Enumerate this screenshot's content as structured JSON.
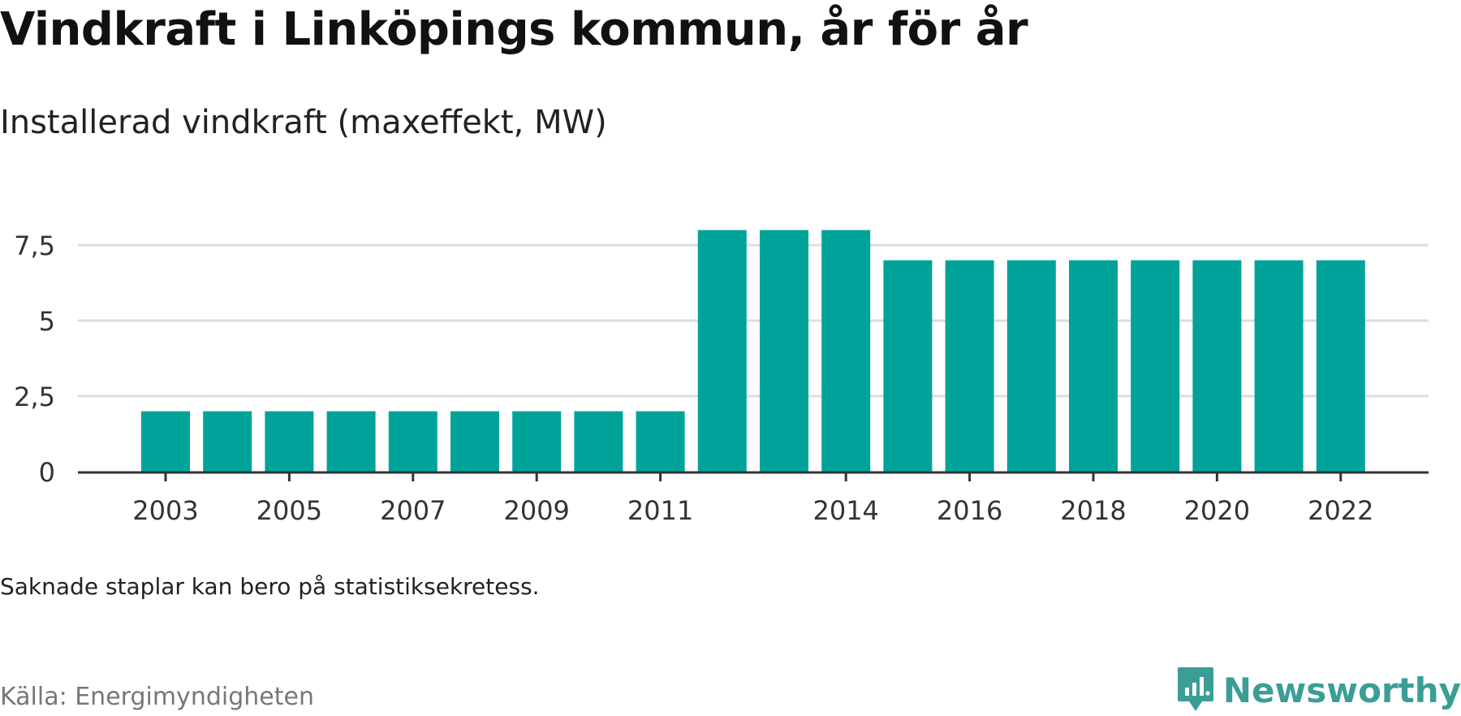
{
  "title": "Vindkraft i Linköpings kommun, år för år",
  "subtitle": "Installerad vindkraft (maxeffekt, MW)",
  "note": "Saknade staplar kan bero på statistiksekretess.",
  "source": "Källa: Energimyndigheten",
  "logo": {
    "text": "Newsworthy",
    "icon": "newsworthy-logo-icon",
    "color": "#3a9e96"
  },
  "colors": {
    "bar": "#00a39a",
    "grid": "#dddddd",
    "axis": "#333333"
  },
  "chart_data": {
    "type": "bar",
    "categories": [
      "2003",
      "2004",
      "2005",
      "2006",
      "2007",
      "2008",
      "2009",
      "2010",
      "2011",
      "2012",
      "2013",
      "2014",
      "2015",
      "2016",
      "2017",
      "2018",
      "2019",
      "2020",
      "2021",
      "2022"
    ],
    "values": [
      2,
      2,
      2,
      2,
      2,
      2,
      2,
      2,
      2,
      8,
      8,
      8,
      7,
      7,
      7,
      7,
      7,
      7,
      7,
      7
    ],
    "x_tick_labels": [
      "2003",
      "2005",
      "2007",
      "2009",
      "2011",
      "2014",
      "2016",
      "2018",
      "2020",
      "2022"
    ],
    "y_ticks": [
      0,
      2.5,
      5,
      7.5
    ],
    "y_tick_labels": [
      "0",
      "2,5",
      "5",
      "7,5"
    ],
    "ylim": [
      0,
      8.5
    ],
    "xlabel": "",
    "ylabel": "",
    "grid": true,
    "legend": "none"
  }
}
